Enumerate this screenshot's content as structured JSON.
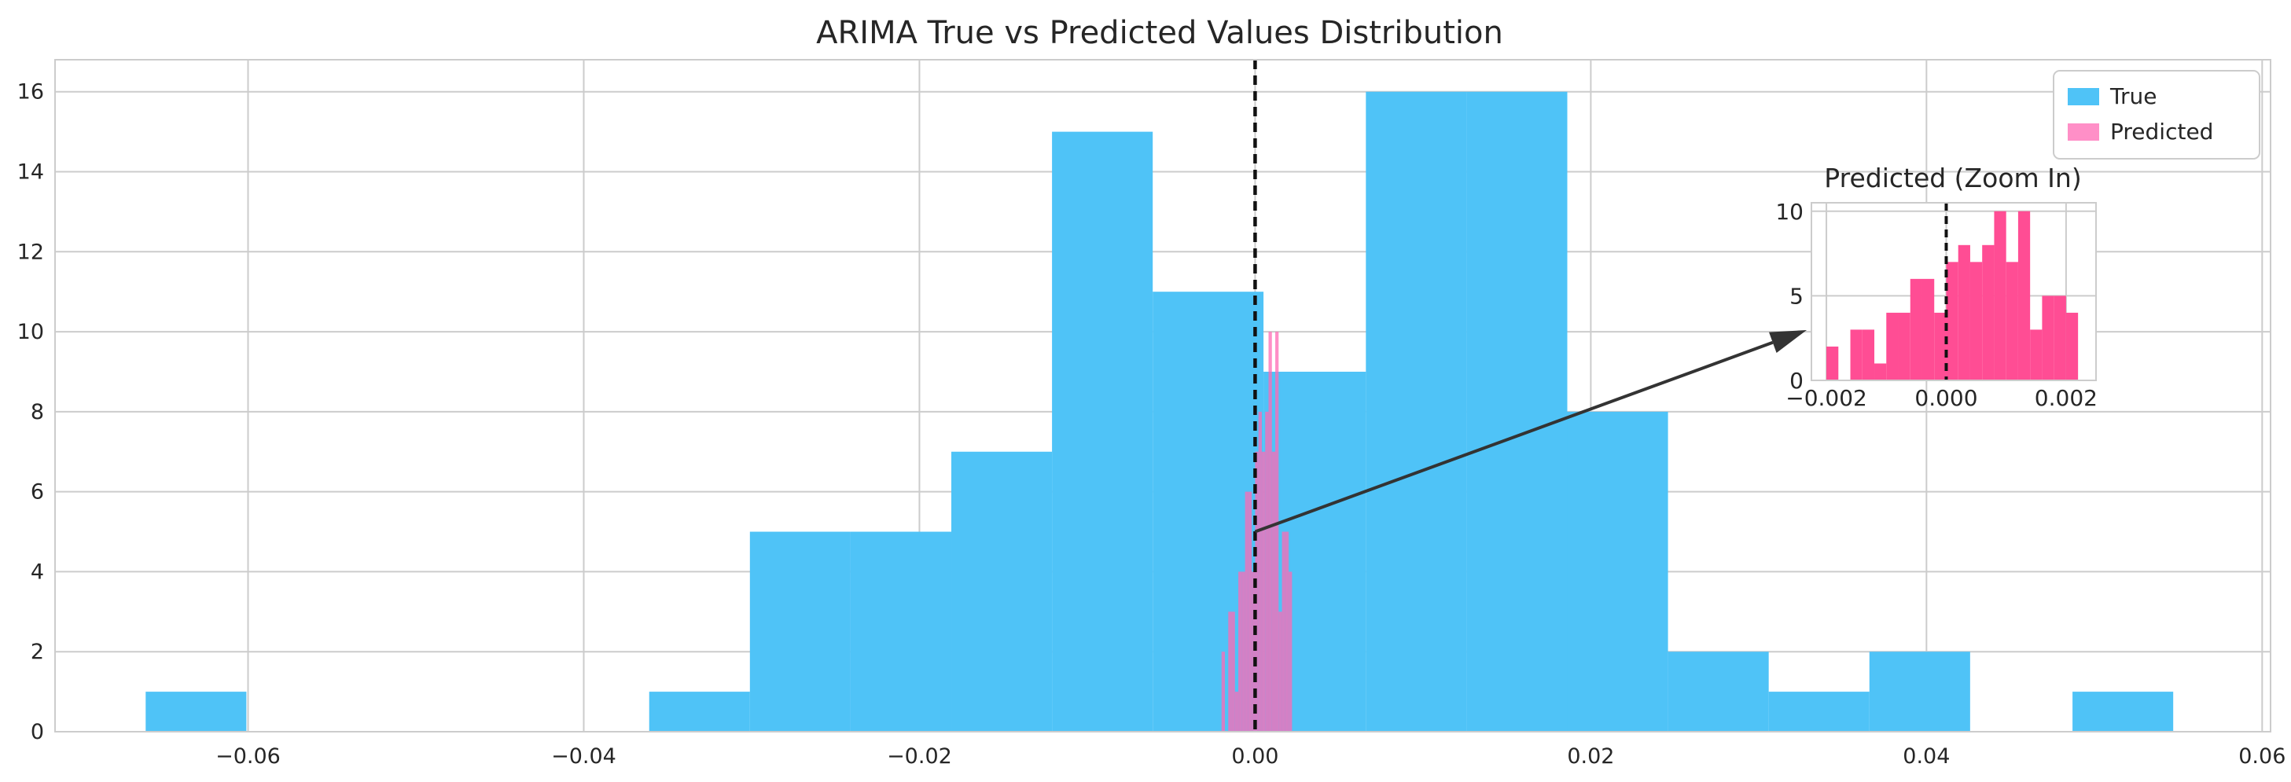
{
  "chart_data": [
    {
      "type": "histogram",
      "title": "ARIMA True vs Predicted Values Distribution",
      "xlabel": "",
      "ylabel": "",
      "xlim": [
        -0.0715,
        0.0605
      ],
      "ylim": [
        0,
        16.8
      ],
      "xticks": [
        -0.06,
        -0.04,
        -0.02,
        0.0,
        0.02,
        0.04,
        0.06
      ],
      "xtick_labels": [
        "−0.06",
        "−0.04",
        "−0.02",
        "0.00",
        "0.02",
        "0.04",
        "0.06"
      ],
      "yticks": [
        0,
        2,
        4,
        6,
        8,
        10,
        12,
        14,
        16
      ],
      "ytick_labels": [
        "0",
        "2",
        "4",
        "6",
        "8",
        "10",
        "12",
        "14",
        "16"
      ],
      "grid": true,
      "legend_position": "top-right",
      "reference_line": {
        "x": 0.0,
        "style": "dashed",
        "color": "#111111"
      },
      "series": [
        {
          "name": "True",
          "color": "#4fc3f7",
          "opacity": 1.0,
          "bin_edges": [
            -0.0661,
            -0.0601,
            -0.0541,
            -0.0481,
            -0.0421,
            -0.0361,
            -0.0301,
            -0.0241,
            -0.0181,
            -0.0121,
            -0.0061,
            0.0005,
            0.0066,
            0.0126,
            0.0186,
            0.0246,
            0.0306,
            0.0366,
            0.0426,
            0.0487,
            0.0547
          ],
          "counts": [
            1,
            0,
            0,
            0,
            0,
            1,
            5,
            5,
            7,
            15,
            11,
            9,
            16,
            16,
            8,
            2,
            1,
            2,
            0,
            1
          ]
        },
        {
          "name": "Predicted",
          "color": "#ff69b4",
          "opacity": 0.75,
          "bin_edges": [
            -0.002,
            -0.0018,
            -0.0016,
            -0.0014,
            -0.0012,
            -0.001,
            -0.0008,
            -0.0006,
            -0.0004,
            -0.0002,
            0.0,
            0.0002,
            0.0004,
            0.0006,
            0.0008,
            0.001,
            0.0012,
            0.0014,
            0.0016,
            0.0018,
            0.002,
            0.0022
          ],
          "counts": [
            2,
            0,
            3,
            3,
            1,
            4,
            4,
            6,
            6,
            4,
            7,
            8,
            7,
            8,
            10,
            7,
            10,
            3,
            5,
            5,
            4
          ]
        }
      ]
    },
    {
      "type": "histogram",
      "title": "Predicted (Zoom In)",
      "xlim": [
        -0.00225,
        0.0025
      ],
      "ylim": [
        0,
        10.5
      ],
      "xticks": [
        -0.002,
        0.0,
        0.002
      ],
      "xtick_labels": [
        "−0.002",
        "0.000",
        "0.002"
      ],
      "yticks": [
        0,
        5,
        10
      ],
      "ytick_labels": [
        "0",
        "5",
        "10"
      ],
      "grid": true,
      "reference_line": {
        "x": 0.0,
        "style": "dashed",
        "color": "#111111"
      },
      "annotation_arrow": {
        "from_x": 0.0,
        "from_y": 5
      },
      "series": [
        {
          "name": "Predicted",
          "color": "#ff4d94",
          "opacity": 1.0,
          "bin_edges": [
            -0.002,
            -0.0018,
            -0.0016,
            -0.0014,
            -0.0012,
            -0.001,
            -0.0008,
            -0.0006,
            -0.0004,
            -0.0002,
            0.0,
            0.0002,
            0.0004,
            0.0006,
            0.0008,
            0.001,
            0.0012,
            0.0014,
            0.0016,
            0.0018,
            0.002,
            0.0022
          ],
          "counts": [
            2,
            0,
            3,
            3,
            1,
            4,
            4,
            6,
            6,
            4,
            7,
            8,
            7,
            8,
            10,
            7,
            10,
            3,
            5,
            5,
            4
          ]
        }
      ]
    }
  ]
}
